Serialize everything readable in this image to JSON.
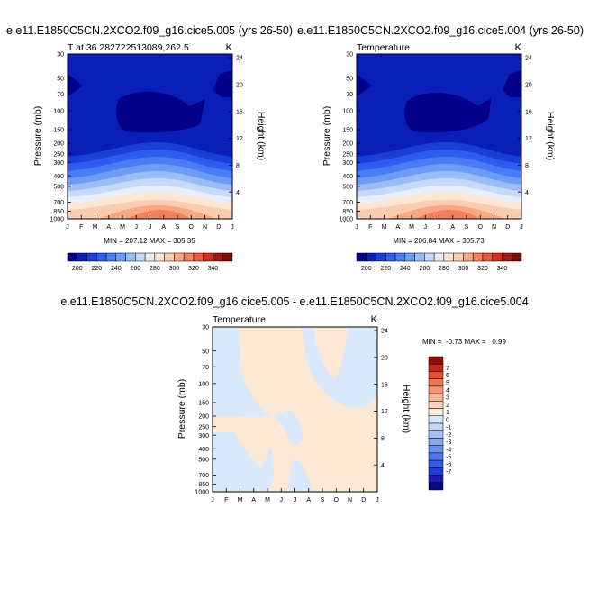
{
  "colors": {
    "abs_scale": [
      "#03008a",
      "#0a1fb8",
      "#1a3fd9",
      "#2e5cf0",
      "#4a7cf5",
      "#6d9cf6",
      "#98bdf7",
      "#c6daf8",
      "#e8eefa",
      "#fde6d4",
      "#fbcdb0",
      "#f7a883",
      "#f27f5d",
      "#ec5634",
      "#d42c1a",
      "#a5150b",
      "#7b0a05"
    ],
    "diff_scale": [
      "#0a0a80",
      "#1d1ab8",
      "#1f3cd8",
      "#2f5de6",
      "#4a78ef",
      "#6791f1",
      "#87a8f1",
      "#a7c0f2",
      "#c4d5f5",
      "#d9e8fb",
      "#fde8d5",
      "#fbd1b7",
      "#f8b495",
      "#f59673",
      "#ef7550",
      "#e4512f",
      "#c32a16",
      "#8f0f08"
    ]
  },
  "panels": [
    {
      "id": "left-top",
      "title": "e.e11.E1850C5CN.2XCO2.f09_g16.cice5.005 (yrs 26-50)",
      "left_string": "T at 36.282722513089,262.5",
      "right_string": "K",
      "ylabel": "Pressure (mb)",
      "ylabel_right": "Height (km)",
      "min_max": "MIN = 207.12 MAX = 305.35"
    },
    {
      "id": "right-top",
      "title": "e.e11.E1850C5CN.2XCO2.f09_g16.cice5.004 (yrs 26-50)",
      "left_string": "Temperature",
      "right_string": "K",
      "ylabel": "Pressure (mb)",
      "ylabel_right": "Height (km)",
      "min_max": "MIN = 206.84 MAX = 305.73"
    },
    {
      "id": "bottom",
      "title": "e.e11.E1850C5CN.2XCO2.f09_g16.cice5.005 - e.e11.E1850C5CN.2XCO2.f09_g16.cice5.004",
      "left_string": "Temperature",
      "right_string": "K",
      "ylabel": "Pressure (mb)",
      "ylabel_right": "Height (km)",
      "min_max": "MIN =  -0.73 MAX =   0.99"
    }
  ],
  "chart_data": [
    {
      "type": "heatmap",
      "panel": "left-top",
      "x_categories": [
        "J",
        "F",
        "M",
        "A",
        "M",
        "J",
        "J",
        "A",
        "S",
        "O",
        "N",
        "D",
        "J"
      ],
      "y_pressure_ticks": [
        "30",
        "50",
        "70",
        "100",
        "150",
        "200",
        "250",
        "300",
        "400",
        "500",
        "700",
        "850",
        "1000"
      ],
      "y_height_ticks": [
        "24",
        "20",
        "16",
        "12",
        "8",
        "4"
      ],
      "colorbar_labels": [
        "200",
        "220",
        "240",
        "260",
        "280",
        "300",
        "320",
        "340"
      ],
      "min": 207.12,
      "max": 305.35
    },
    {
      "type": "heatmap",
      "panel": "right-top",
      "x_categories": [
        "J",
        "F",
        "M",
        "A",
        "M",
        "J",
        "J",
        "A",
        "S",
        "O",
        "N",
        "D",
        "J"
      ],
      "y_pressure_ticks": [
        "30",
        "50",
        "70",
        "100",
        "150",
        "200",
        "250",
        "300",
        "400",
        "500",
        "700",
        "850",
        "1000"
      ],
      "y_height_ticks": [
        "24",
        "20",
        "16",
        "12",
        "8",
        "4"
      ],
      "colorbar_labels": [
        "200",
        "220",
        "240",
        "260",
        "280",
        "300",
        "320",
        "340"
      ],
      "min": 206.84,
      "max": 305.73
    },
    {
      "type": "heatmap",
      "panel": "bottom",
      "x_categories": [
        "J",
        "F",
        "M",
        "A",
        "M",
        "J",
        "J",
        "A",
        "S",
        "O",
        "N",
        "D",
        "J"
      ],
      "y_pressure_ticks": [
        "30",
        "50",
        "70",
        "100",
        "150",
        "200",
        "250",
        "300",
        "400",
        "500",
        "700",
        "850",
        "1000"
      ],
      "y_height_ticks": [
        "24",
        "20",
        "16",
        "12",
        "8",
        "4"
      ],
      "colorbar_labels": [
        "7",
        "6",
        "5",
        "4",
        "3",
        "2",
        "1",
        "0",
        "-1",
        "-2",
        "-3",
        "-4",
        "-5",
        "-6",
        "-7"
      ],
      "min": -0.73,
      "max": 0.99
    }
  ]
}
